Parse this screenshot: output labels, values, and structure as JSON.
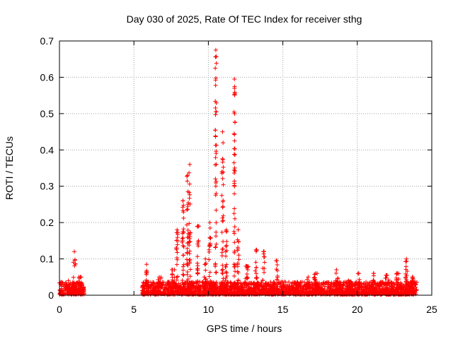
{
  "chart_data": {
    "type": "scatter",
    "title": "Day 030 of 2025, Rate Of TEC Index for receiver sthg",
    "xlabel": "GPS time / hours",
    "ylabel": "ROTI / TECUs",
    "xlim": [
      0,
      25
    ],
    "ylim": [
      0,
      0.7
    ],
    "xticks": [
      0,
      5,
      10,
      15,
      20,
      25
    ],
    "yticks": [
      0,
      0.1,
      0.2,
      0.3,
      0.4,
      0.5,
      0.6,
      0.7
    ],
    "xtick_labels": [
      "0",
      "5",
      "10",
      "15",
      "20",
      "25"
    ],
    "ytick_labels": [
      "0",
      "0.1",
      "0.2",
      "0.3",
      "0.4",
      "0.5",
      "0.6",
      "0.7"
    ],
    "grid": true,
    "marker": "plus",
    "color": "#ff0000",
    "segments": [
      {
        "x_start": 0.0,
        "x_end": 1.65
      },
      {
        "x_start": 5.55,
        "x_end": 24.0
      }
    ],
    "peaks": [
      {
        "x": 0.6,
        "y": 0.04,
        "width": 0.3
      },
      {
        "x": 1.0,
        "y": 0.12,
        "width": 0.15
      },
      {
        "x": 1.4,
        "y": 0.05,
        "width": 0.2
      },
      {
        "x": 5.85,
        "y": 0.085,
        "width": 0.05
      },
      {
        "x": 6.7,
        "y": 0.05,
        "width": 0.3
      },
      {
        "x": 7.6,
        "y": 0.07,
        "width": 0.25
      },
      {
        "x": 7.9,
        "y": 0.18,
        "width": 0.12
      },
      {
        "x": 8.3,
        "y": 0.26,
        "width": 0.12
      },
      {
        "x": 8.6,
        "y": 0.33,
        "width": 0.1
      },
      {
        "x": 8.75,
        "y": 0.36,
        "width": 0.1
      },
      {
        "x": 9.3,
        "y": 0.19,
        "width": 0.12
      },
      {
        "x": 9.8,
        "y": 0.1,
        "width": 0.15
      },
      {
        "x": 10.1,
        "y": 0.2,
        "width": 0.12
      },
      {
        "x": 10.5,
        "y": 0.675,
        "width": 0.08
      },
      {
        "x": 10.95,
        "y": 0.45,
        "width": 0.1
      },
      {
        "x": 11.2,
        "y": 0.18,
        "width": 0.12
      },
      {
        "x": 11.75,
        "y": 0.595,
        "width": 0.08
      },
      {
        "x": 12.0,
        "y": 0.18,
        "width": 0.1
      },
      {
        "x": 12.6,
        "y": 0.08,
        "width": 0.2
      },
      {
        "x": 13.2,
        "y": 0.125,
        "width": 0.15
      },
      {
        "x": 13.7,
        "y": 0.12,
        "width": 0.15
      },
      {
        "x": 14.6,
        "y": 0.095,
        "width": 0.12
      },
      {
        "x": 15.8,
        "y": 0.035,
        "width": 0.3
      },
      {
        "x": 16.7,
        "y": 0.05,
        "width": 0.3
      },
      {
        "x": 17.2,
        "y": 0.06,
        "width": 0.25
      },
      {
        "x": 18.6,
        "y": 0.07,
        "width": 0.2
      },
      {
        "x": 19.4,
        "y": 0.04,
        "width": 0.3
      },
      {
        "x": 20.1,
        "y": 0.06,
        "width": 0.2
      },
      {
        "x": 21.1,
        "y": 0.06,
        "width": 0.25
      },
      {
        "x": 22.0,
        "y": 0.055,
        "width": 0.25
      },
      {
        "x": 22.7,
        "y": 0.06,
        "width": 0.2
      },
      {
        "x": 23.3,
        "y": 0.1,
        "width": 0.12
      },
      {
        "x": 23.7,
        "y": 0.05,
        "width": 0.2
      }
    ],
    "baseline_max": 0.035,
    "point_density_per_hour": 120
  }
}
